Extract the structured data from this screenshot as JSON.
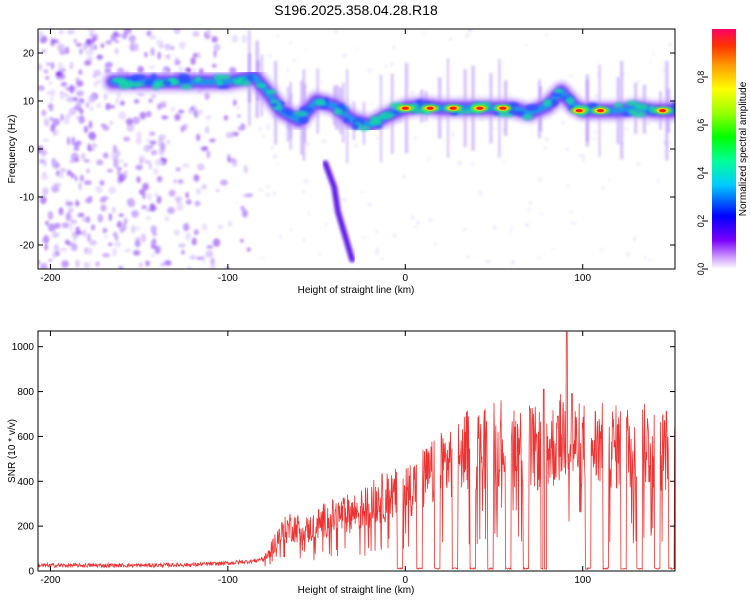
{
  "figure_title": "S196.2025.358.04.28.R18",
  "chart_data": [
    {
      "type": "heatmap",
      "xlabel": "Height of straight line (km)",
      "ylabel": "Frequency (Hz)",
      "xlim": [
        -207,
        152
      ],
      "ylim": [
        -25,
        25
      ],
      "x_ticks": [
        -200,
        -100,
        0,
        100
      ],
      "y_ticks": [
        -20,
        -10,
        0,
        10,
        20
      ],
      "colorbar": {
        "label": "Normalized spectral amplitude",
        "range": [
          0,
          1
        ],
        "ticks": [
          0.0,
          0.2,
          0.4,
          0.6,
          0.8
        ],
        "tick_labels": [
          "0.0",
          "0.2",
          "0.4",
          "0.6",
          "0.8"
        ],
        "colormap": "rainbow"
      },
      "main_ridge": [
        {
          "x": -165,
          "y": 14
        },
        {
          "x": -140,
          "y": 14
        },
        {
          "x": -120,
          "y": 14
        },
        {
          "x": -100,
          "y": 14
        },
        {
          "x": -85,
          "y": 15
        },
        {
          "x": -78,
          "y": 12
        },
        {
          "x": -70,
          "y": 8
        },
        {
          "x": -60,
          "y": 6
        },
        {
          "x": -50,
          "y": 10
        },
        {
          "x": -40,
          "y": 9
        },
        {
          "x": -30,
          "y": 6
        },
        {
          "x": -20,
          "y": 5
        },
        {
          "x": -10,
          "y": 7
        },
        {
          "x": 0,
          "y": 8.5
        },
        {
          "x": 10,
          "y": 9
        },
        {
          "x": 20,
          "y": 8.5
        },
        {
          "x": 30,
          "y": 8.5
        },
        {
          "x": 40,
          "y": 8.5
        },
        {
          "x": 50,
          "y": 8.5
        },
        {
          "x": 60,
          "y": 8.5
        },
        {
          "x": 70,
          "y": 7.5
        },
        {
          "x": 80,
          "y": 9
        },
        {
          "x": 88,
          "y": 12
        },
        {
          "x": 95,
          "y": 9
        },
        {
          "x": 100,
          "y": 8
        },
        {
          "x": 110,
          "y": 8
        },
        {
          "x": 120,
          "y": 8
        },
        {
          "x": 130,
          "y": 8.5
        },
        {
          "x": 140,
          "y": 8
        },
        {
          "x": 150,
          "y": 8
        }
      ],
      "descending_branch": [
        {
          "x": -45,
          "y": -3
        },
        {
          "x": -40,
          "y": -8
        },
        {
          "x": -38,
          "y": -13
        },
        {
          "x": -34,
          "y": -18
        },
        {
          "x": -30,
          "y": -23
        }
      ],
      "hot_spots": [
        {
          "x": 0,
          "y": 8.5
        },
        {
          "x": 14,
          "y": 8.5
        },
        {
          "x": 27,
          "y": 8.5
        },
        {
          "x": 42,
          "y": 8.5
        },
        {
          "x": 55,
          "y": 8.5
        },
        {
          "x": 98,
          "y": 8
        },
        {
          "x": 110,
          "y": 8
        },
        {
          "x": 145,
          "y": 8
        }
      ]
    },
    {
      "type": "line",
      "xlabel": "Height of straight line (km)",
      "ylabel": "SNR (10 * v/v)",
      "xlim": [
        -207,
        152
      ],
      "ylim": [
        0,
        1070
      ],
      "x_ticks": [
        -200,
        -100,
        0,
        100
      ],
      "y_ticks": [
        0,
        200,
        400,
        600,
        800,
        1000
      ],
      "color": "#ee3333",
      "envelope": [
        {
          "x": -207,
          "y": 25
        },
        {
          "x": -150,
          "y": 25
        },
        {
          "x": -120,
          "y": 28
        },
        {
          "x": -100,
          "y": 35
        },
        {
          "x": -85,
          "y": 45
        },
        {
          "x": -78,
          "y": 60
        },
        {
          "x": -72,
          "y": 150
        },
        {
          "x": -65,
          "y": 200
        },
        {
          "x": -55,
          "y": 180
        },
        {
          "x": -45,
          "y": 230
        },
        {
          "x": -35,
          "y": 250
        },
        {
          "x": -25,
          "y": 270
        },
        {
          "x": -15,
          "y": 320
        },
        {
          "x": -5,
          "y": 340
        },
        {
          "x": 5,
          "y": 380
        },
        {
          "x": 15,
          "y": 430
        },
        {
          "x": 25,
          "y": 490
        },
        {
          "x": 35,
          "y": 540
        },
        {
          "x": 45,
          "y": 560
        },
        {
          "x": 55,
          "y": 580
        },
        {
          "x": 65,
          "y": 560
        },
        {
          "x": 75,
          "y": 540
        },
        {
          "x": 85,
          "y": 560
        },
        {
          "x": 90,
          "y": 620
        },
        {
          "x": 95,
          "y": 560
        },
        {
          "x": 100,
          "y": 560
        },
        {
          "x": 110,
          "y": 560
        },
        {
          "x": 120,
          "y": 550
        },
        {
          "x": 130,
          "y": 560
        },
        {
          "x": 140,
          "y": 550
        },
        {
          "x": 152,
          "y": 540
        }
      ],
      "dropouts_x": [
        -3,
        8,
        18,
        28,
        38,
        48,
        58,
        68,
        78,
        103,
        113,
        123,
        132,
        142,
        150
      ],
      "peaks": [
        {
          "x": 78,
          "y": 810
        },
        {
          "x": 86,
          "y": 690
        },
        {
          "x": 91,
          "y": 1065
        },
        {
          "x": 94,
          "y": 790
        }
      ]
    }
  ]
}
